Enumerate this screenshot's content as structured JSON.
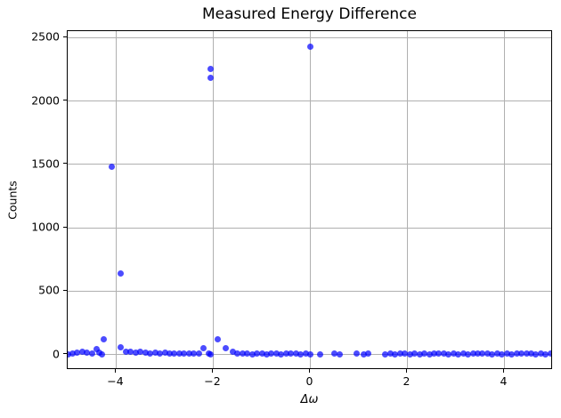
{
  "chart_data": {
    "type": "scatter",
    "title": "Measured Energy Difference",
    "xlabel": "Δω",
    "ylabel": "Counts",
    "xlim": [
      -5,
      5
    ],
    "ylim": [
      -121.5,
      2551.5
    ],
    "x_ticks": [
      {
        "value": -4,
        "label": "−4"
      },
      {
        "value": -2,
        "label": "−2"
      },
      {
        "value": 0,
        "label": "0"
      },
      {
        "value": 2,
        "label": "2"
      },
      {
        "value": 4,
        "label": "4"
      }
    ],
    "y_ticks": [
      {
        "value": 0,
        "label": "0"
      },
      {
        "value": 500,
        "label": "500"
      },
      {
        "value": 1000,
        "label": "1000"
      },
      {
        "value": 1500,
        "label": "1500"
      },
      {
        "value": 2000,
        "label": "2000"
      },
      {
        "value": 2500,
        "label": "2500"
      }
    ],
    "grid": true,
    "legend": false,
    "marker_color": "#0000ff",
    "marker_alpha": 0.7,
    "grid_color": "#b0b0b0",
    "spine_color": "#000000",
    "points": [
      [
        -5.0,
        2
      ],
      [
        -4.9,
        10
      ],
      [
        -4.8,
        16
      ],
      [
        -4.7,
        23
      ],
      [
        -4.6,
        14
      ],
      [
        -4.5,
        5
      ],
      [
        -4.4,
        46
      ],
      [
        -4.35,
        15
      ],
      [
        -4.3,
        2
      ],
      [
        -4.25,
        123
      ],
      [
        -4.1,
        1480
      ],
      [
        -3.9,
        640
      ],
      [
        -3.9,
        58
      ],
      [
        -3.8,
        25
      ],
      [
        -3.7,
        20
      ],
      [
        -3.6,
        14
      ],
      [
        -3.5,
        20
      ],
      [
        -3.4,
        13
      ],
      [
        -3.3,
        9
      ],
      [
        -3.2,
        12
      ],
      [
        -3.1,
        8
      ],
      [
        -3.0,
        13
      ],
      [
        -2.9,
        8
      ],
      [
        -2.8,
        11
      ],
      [
        -2.7,
        8
      ],
      [
        -2.6,
        9
      ],
      [
        -2.5,
        9
      ],
      [
        -2.4,
        9
      ],
      [
        -2.3,
        7
      ],
      [
        -2.2,
        48
      ],
      [
        -2.1,
        6
      ],
      [
        -2.05,
        2255
      ],
      [
        -2.05,
        2185
      ],
      [
        -2.05,
        2
      ],
      [
        -1.9,
        119
      ],
      [
        -1.75,
        50
      ],
      [
        -1.6,
        20
      ],
      [
        -1.5,
        8
      ],
      [
        -1.4,
        5
      ],
      [
        -1.3,
        8
      ],
      [
        -1.2,
        3
      ],
      [
        -1.1,
        6
      ],
      [
        -1.0,
        8
      ],
      [
        -0.9,
        4
      ],
      [
        -0.8,
        6
      ],
      [
        -0.7,
        8
      ],
      [
        -0.6,
        4
      ],
      [
        -0.5,
        6
      ],
      [
        -0.4,
        5
      ],
      [
        -0.3,
        7
      ],
      [
        -0.2,
        4
      ],
      [
        -0.1,
        5
      ],
      [
        0.0,
        2430
      ],
      [
        0.0,
        2
      ],
      [
        0.2,
        4
      ],
      [
        0.5,
        6
      ],
      [
        0.6,
        4
      ],
      [
        0.95,
        5
      ],
      [
        1.1,
        4
      ],
      [
        1.2,
        5
      ],
      [
        1.55,
        4
      ],
      [
        1.65,
        7
      ],
      [
        1.75,
        4
      ],
      [
        1.85,
        9
      ],
      [
        1.95,
        5
      ],
      [
        2.05,
        4
      ],
      [
        2.15,
        7
      ],
      [
        2.25,
        4
      ],
      [
        2.35,
        6
      ],
      [
        2.45,
        4
      ],
      [
        2.55,
        5
      ],
      [
        2.65,
        9
      ],
      [
        2.75,
        5
      ],
      [
        2.85,
        4
      ],
      [
        2.95,
        7
      ],
      [
        3.05,
        4
      ],
      [
        3.15,
        5
      ],
      [
        3.25,
        4
      ],
      [
        3.35,
        7
      ],
      [
        3.45,
        5
      ],
      [
        3.55,
        9
      ],
      [
        3.65,
        5
      ],
      [
        3.75,
        4
      ],
      [
        3.85,
        7
      ],
      [
        3.95,
        4
      ],
      [
        4.05,
        5
      ],
      [
        4.15,
        4
      ],
      [
        4.25,
        7
      ],
      [
        4.35,
        5
      ],
      [
        4.45,
        9
      ],
      [
        4.55,
        5
      ],
      [
        4.65,
        4
      ],
      [
        4.75,
        7
      ],
      [
        4.85,
        4
      ],
      [
        4.95,
        5
      ]
    ]
  }
}
